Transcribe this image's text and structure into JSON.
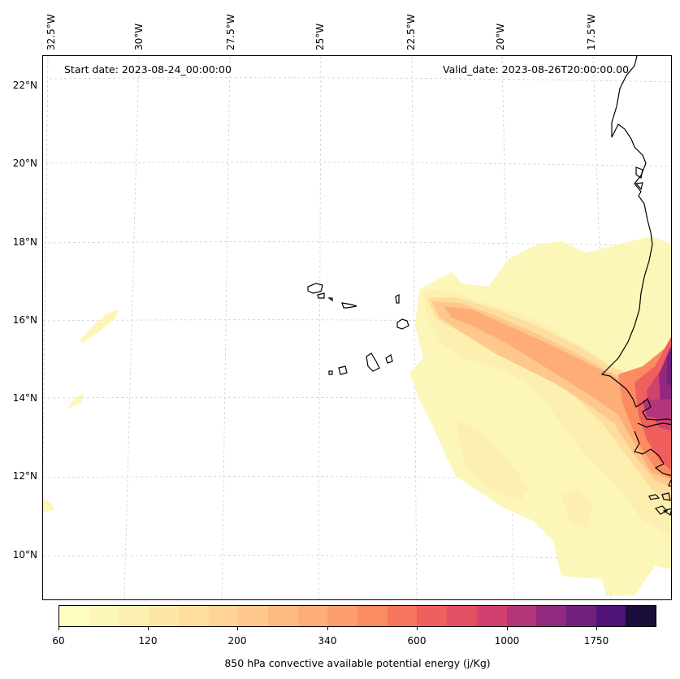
{
  "map": {
    "start_date": "Start date: 2023-08-24_00:00:00",
    "valid_date": "Valid_date: 2023-08-26T20:00:00.00",
    "lon_labels": [
      "32.5°W",
      "30°W",
      "27.5°W",
      "25°W",
      "22.5°W",
      "20°W",
      "17.5°W"
    ],
    "lat_labels": [
      "22°N",
      "20°N",
      "18°N",
      "16°N",
      "14°N",
      "12°N",
      "10°N"
    ]
  },
  "colorbar": {
    "label": "850 hPa convective available potential energy (j/Kg)",
    "tick_labels": [
      "60",
      "120",
      "200",
      "340",
      "600",
      "1000",
      "1750"
    ],
    "colors": [
      "#fcfdbf",
      "#fcf6b8",
      "#fdefb0",
      "#fde6a6",
      "#fedd9d",
      "#fed395",
      "#fec88c",
      "#febb81",
      "#fead77",
      "#fd9d6c",
      "#fb8c61",
      "#f7745d",
      "#ef5f5e",
      "#e24f62",
      "#d0416f",
      "#b3367a",
      "#92297f",
      "#71207e",
      "#4f137a",
      "#1a0f3b"
    ],
    "coastline_color": "#000000",
    "grid_color": "#cfcfcf"
  }
}
